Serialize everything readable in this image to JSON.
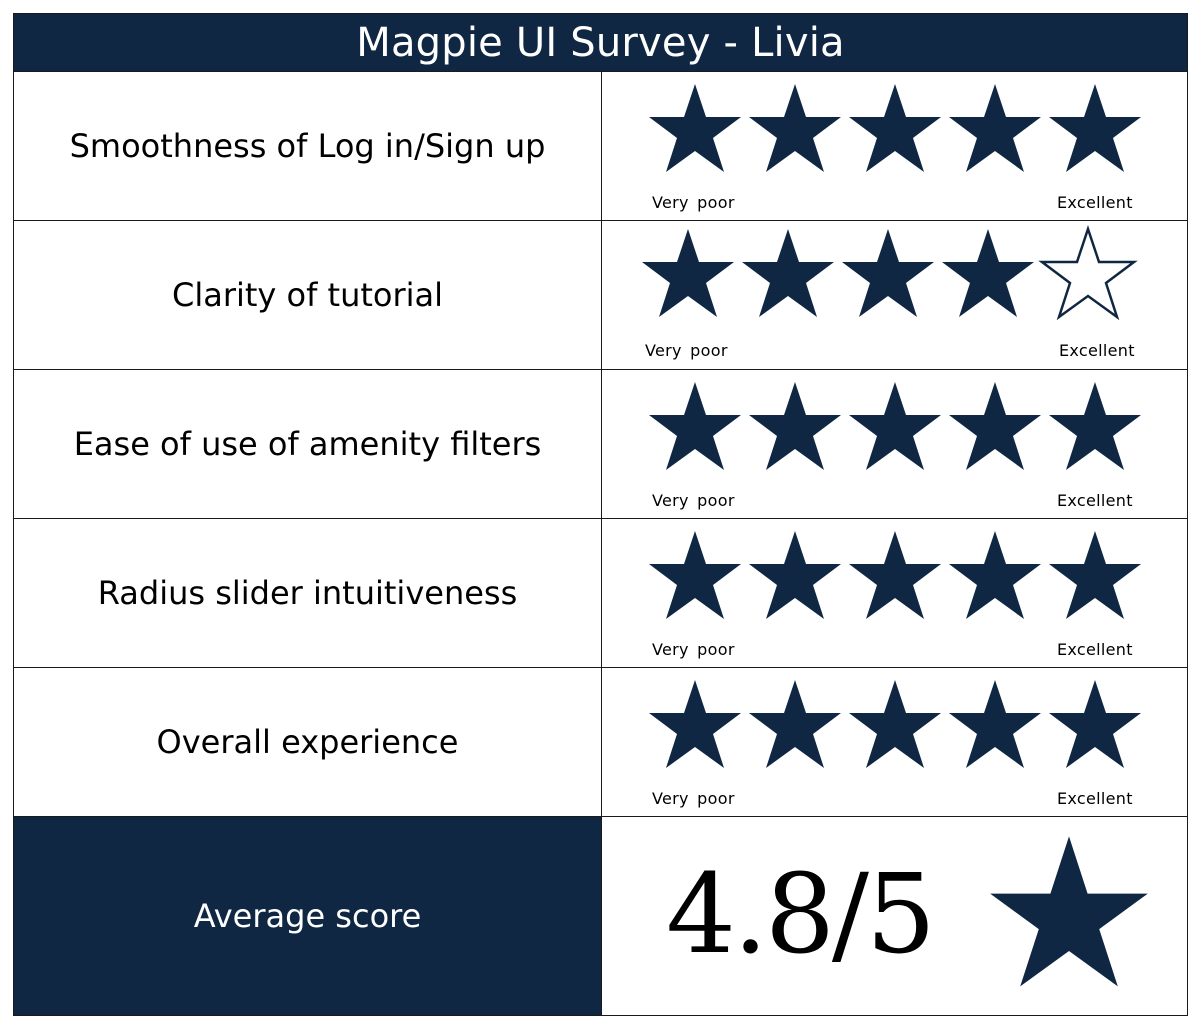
{
  "title": "Magpie UI Survey - Livia",
  "colors": {
    "navy": "#0f2742",
    "border": "#1a1a1a",
    "text_on_navy": "#ffffff"
  },
  "scale": {
    "low_label": "Very poor",
    "high_label": "Excellent",
    "max_stars": 5
  },
  "questions": [
    {
      "label": "Smoothness of Log in/Sign up",
      "rating": 5
    },
    {
      "label": "Clarity of tutorial",
      "rating": 4
    },
    {
      "label": "Ease of use of amenity filters",
      "rating": 5
    },
    {
      "label": "Radius slider intuitiveness",
      "rating": 5
    },
    {
      "label": "Overall experience",
      "rating": 5
    }
  ],
  "summary": {
    "label": "Average score",
    "score": "4.8/5",
    "icon": "star-icon"
  }
}
